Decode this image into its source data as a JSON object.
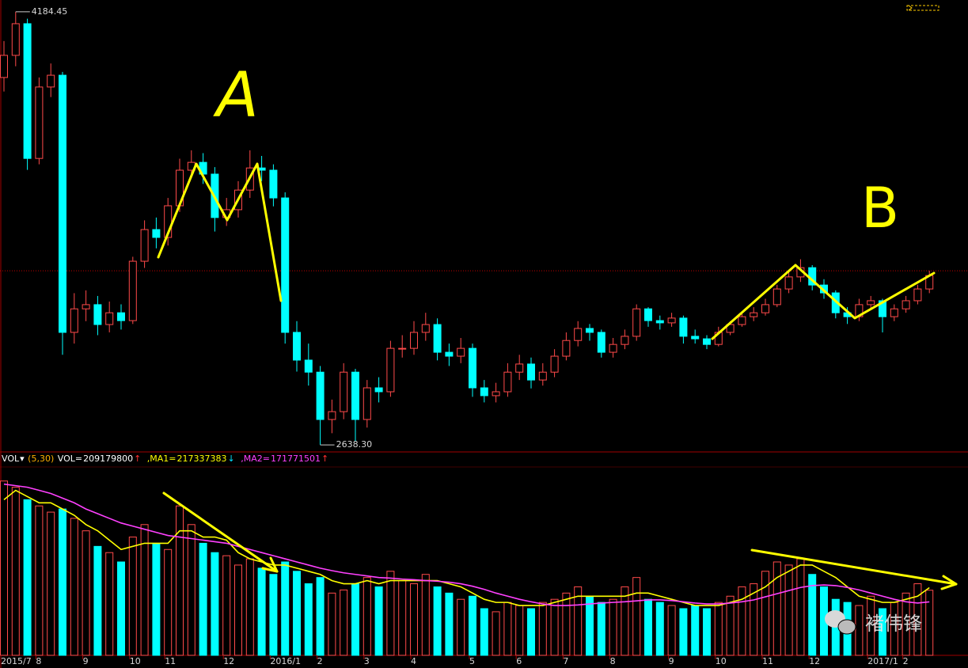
{
  "chart_data": [
    {
      "type": "candlestick",
      "categories": [
        "2015/7",
        null,
        null,
        "8",
        null,
        null,
        null,
        "9",
        null,
        null,
        null,
        "10",
        null,
        null,
        "11",
        null,
        null,
        null,
        null,
        "12",
        null,
        null,
        null,
        "2016/1",
        null,
        null,
        null,
        "2",
        null,
        null,
        null,
        "3",
        null,
        null,
        null,
        "4",
        null,
        null,
        null,
        null,
        "5",
        null,
        null,
        null,
        "6",
        null,
        null,
        null,
        "7",
        null,
        null,
        null,
        "8",
        null,
        null,
        null,
        null,
        "9",
        null,
        null,
        null,
        "10",
        null,
        null,
        null,
        "11",
        null,
        null,
        null,
        "12",
        null,
        null,
        null,
        null,
        "2017/1",
        null,
        null,
        "2",
        null,
        null
      ],
      "open": [
        3950,
        4029,
        4142,
        3661,
        3916,
        3958,
        3040,
        3124,
        3139,
        3068,
        3110,
        3082,
        3294,
        3407,
        3379,
        3492,
        3619,
        3647,
        3605,
        3450,
        3478,
        3548,
        3627,
        3619,
        3520,
        3040,
        2941,
        2898,
        2729,
        2757,
        2898,
        2729,
        2842,
        2828,
        2983,
        2983,
        3040,
        3068,
        2969,
        2955,
        2983,
        2842,
        2814,
        2828,
        2898,
        2927,
        2870,
        2898,
        2955,
        3011,
        3054,
        3040,
        2969,
        2997,
        3026,
        3124,
        3082,
        3074,
        3091,
        3026,
        3017,
        2997,
        3040,
        3068,
        3096,
        3110,
        3139,
        3195,
        3238,
        3271,
        3209,
        3181,
        3110,
        3096,
        3139,
        3153,
        3096,
        3124,
        3153,
        3195
      ],
      "high": [
        4080,
        4184.45,
        4160,
        3950,
        4000,
        3970,
        3180,
        3190,
        3170,
        3150,
        3140,
        3310,
        3440,
        3450,
        3520,
        3660,
        3690,
        3680,
        3630,
        3520,
        3580,
        3690,
        3670,
        3640,
        3540,
        3080,
        3000,
        2920,
        2800,
        2930,
        2910,
        2870,
        2880,
        3010,
        3030,
        3080,
        3110,
        3090,
        3000,
        3020,
        3000,
        2870,
        2860,
        2930,
        2960,
        2950,
        2930,
        2980,
        3040,
        3080,
        3070,
        3050,
        3020,
        3050,
        3140,
        3130,
        3100,
        3110,
        3100,
        3050,
        3030,
        3060,
        3080,
        3110,
        3130,
        3160,
        3210,
        3260,
        3301,
        3280,
        3230,
        3190,
        3130,
        3160,
        3170,
        3160,
        3140,
        3170,
        3210,
        3260
      ],
      "low": [
        3900,
        3990,
        3620,
        3640,
        3880,
        2960,
        3000,
        3080,
        3030,
        3040,
        3050,
        3070,
        3270,
        3340,
        3350,
        3470,
        3590,
        3570,
        3400,
        3420,
        3450,
        3520,
        3580,
        3490,
        3000,
        2900,
        2850,
        2638.3,
        2680,
        2730,
        2650,
        2700,
        2790,
        2810,
        2950,
        2960,
        3010,
        2940,
        2920,
        2930,
        2810,
        2790,
        2790,
        2810,
        2870,
        2840,
        2850,
        2880,
        2940,
        2990,
        3010,
        2950,
        2950,
        2980,
        3010,
        3060,
        3050,
        3060,
        3000,
        3000,
        2980,
        2990,
        3030,
        3060,
        3080,
        3100,
        3130,
        3180,
        3220,
        3190,
        3160,
        3090,
        3070,
        3080,
        3120,
        3040,
        3080,
        3110,
        3140,
        3180
      ],
      "close": [
        4029,
        4142,
        3661,
        3916,
        3958,
        3040,
        3124,
        3139,
        3068,
        3110,
        3082,
        3294,
        3407,
        3379,
        3492,
        3619,
        3647,
        3605,
        3450,
        3478,
        3548,
        3627,
        3619,
        3520,
        3040,
        2941,
        2898,
        2729,
        2757,
        2898,
        2729,
        2842,
        2828,
        2983,
        2983,
        3040,
        3068,
        2969,
        2955,
        2983,
        2842,
        2814,
        2828,
        2898,
        2927,
        2870,
        2898,
        2955,
        3011,
        3054,
        3040,
        2969,
        2997,
        3026,
        3124,
        3082,
        3074,
        3091,
        3026,
        3017,
        2997,
        3040,
        3068,
        3096,
        3110,
        3139,
        3195,
        3238,
        3271,
        3209,
        3181,
        3110,
        3096,
        3139,
        3153,
        3096,
        3124,
        3153,
        3195,
        3243
      ],
      "up_color": "#ff4a4a",
      "down_color": "#00ffff",
      "ylim": [
        2616,
        4204
      ],
      "max_label": 4184.45,
      "min_label": {
        "value": 2638.3,
        "label": "2638.30"
      },
      "reference_line": 3260,
      "reference_color": "#c00000",
      "annotations": [
        "A",
        "B"
      ]
    },
    {
      "type": "bar",
      "indicator": "VOL",
      "params": "(5,30)",
      "readouts": [
        {
          "label": "VOL=",
          "value": 209179800,
          "color": "#ffffff"
        },
        {
          "label": ",MA1=",
          "value": 217337383,
          "color": "#ffff00"
        },
        {
          "label": ",MA2=",
          "value": 171771501,
          "color": "#ff40ff"
        }
      ],
      "ylim": [
        0,
        600000000
      ],
      "values": [
        560000000,
        540000000,
        500000000,
        480000000,
        460000000,
        470000000,
        440000000,
        400000000,
        350000000,
        330000000,
        300000000,
        380000000,
        420000000,
        360000000,
        340000000,
        480000000,
        420000000,
        360000000,
        330000000,
        320000000,
        290000000,
        310000000,
        280000000,
        260000000,
        300000000,
        270000000,
        230000000,
        250000000,
        200000000,
        210000000,
        230000000,
        250000000,
        220000000,
        270000000,
        240000000,
        230000000,
        260000000,
        220000000,
        200000000,
        180000000,
        190000000,
        150000000,
        140000000,
        170000000,
        160000000,
        150000000,
        170000000,
        180000000,
        200000000,
        220000000,
        190000000,
        170000000,
        180000000,
        220000000,
        250000000,
        180000000,
        170000000,
        160000000,
        150000000,
        160000000,
        150000000,
        170000000,
        190000000,
        220000000,
        230000000,
        270000000,
        300000000,
        290000000,
        310000000,
        260000000,
        220000000,
        180000000,
        170000000,
        160000000,
        190000000,
        150000000,
        170000000,
        200000000,
        230000000,
        209179800
      ],
      "series": [
        {
          "color": "#ffff00",
          "values": [
            500000000,
            530000000,
            510000000,
            490000000,
            490000000,
            470000000,
            450000000,
            420000000,
            400000000,
            370000000,
            340000000,
            350000000,
            360000000,
            360000000,
            360000000,
            400000000,
            400000000,
            380000000,
            380000000,
            370000000,
            330000000,
            310000000,
            300000000,
            290000000,
            290000000,
            280000000,
            270000000,
            260000000,
            240000000,
            230000000,
            230000000,
            240000000,
            230000000,
            240000000,
            240000000,
            240000000,
            240000000,
            240000000,
            230000000,
            220000000,
            200000000,
            180000000,
            170000000,
            170000000,
            160000000,
            160000000,
            160000000,
            170000000,
            180000000,
            190000000,
            190000000,
            190000000,
            190000000,
            190000000,
            200000000,
            200000000,
            190000000,
            180000000,
            170000000,
            160000000,
            160000000,
            160000000,
            170000000,
            180000000,
            200000000,
            220000000,
            250000000,
            270000000,
            290000000,
            290000000,
            270000000,
            250000000,
            220000000,
            190000000,
            180000000,
            170000000,
            170000000,
            180000000,
            190000000,
            217337383
          ]
        },
        {
          "color": "#ff40ff",
          "values": [
            550000000,
            545000000,
            540000000,
            530000000,
            520000000,
            505000000,
            490000000,
            470000000,
            455000000,
            440000000,
            425000000,
            415000000,
            405000000,
            395000000,
            385000000,
            380000000,
            375000000,
            370000000,
            365000000,
            360000000,
            350000000,
            340000000,
            330000000,
            320000000,
            310000000,
            300000000,
            290000000,
            280000000,
            272000000,
            265000000,
            260000000,
            255000000,
            250000000,
            248000000,
            245000000,
            243000000,
            240000000,
            238000000,
            235000000,
            230000000,
            222000000,
            212000000,
            200000000,
            190000000,
            180000000,
            172000000,
            165000000,
            160000000,
            160000000,
            162000000,
            165000000,
            168000000,
            170000000,
            172000000,
            175000000,
            178000000,
            178000000,
            176000000,
            172000000,
            168000000,
            165000000,
            165000000,
            168000000,
            172000000,
            178000000,
            188000000,
            198000000,
            208000000,
            218000000,
            224000000,
            226000000,
            224000000,
            218000000,
            210000000,
            200000000,
            190000000,
            180000000,
            172000000,
            168000000,
            171771501
          ]
        }
      ]
    }
  ],
  "watermark": "褚伟锋"
}
